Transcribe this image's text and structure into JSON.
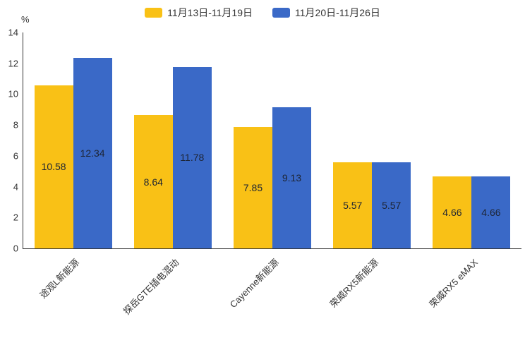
{
  "chart_data": {
    "type": "bar",
    "title": "",
    "categories": [
      "途观L新能源",
      "探岳GTE插电混动",
      "Cayenne新能源",
      "荣威RX5新能源",
      "荣威RX5 eMAX"
    ],
    "series": [
      {
        "name": "11月13日-11月19日",
        "color": "#F9C116",
        "values": [
          10.58,
          8.64,
          7.85,
          5.57,
          4.66
        ]
      },
      {
        "name": "11月20日-11月26日",
        "color": "#3A69C7",
        "values": [
          12.34,
          11.78,
          9.13,
          5.57,
          4.66
        ]
      }
    ],
    "xlabel": "",
    "ylabel": "%",
    "ylim": [
      0,
      14
    ],
    "yticks": [
      0,
      2,
      4,
      6,
      8,
      10,
      12,
      14
    ],
    "grid": false,
    "legend_position": "top",
    "value_labels": "inside-center",
    "x_label_rotation": -45
  }
}
